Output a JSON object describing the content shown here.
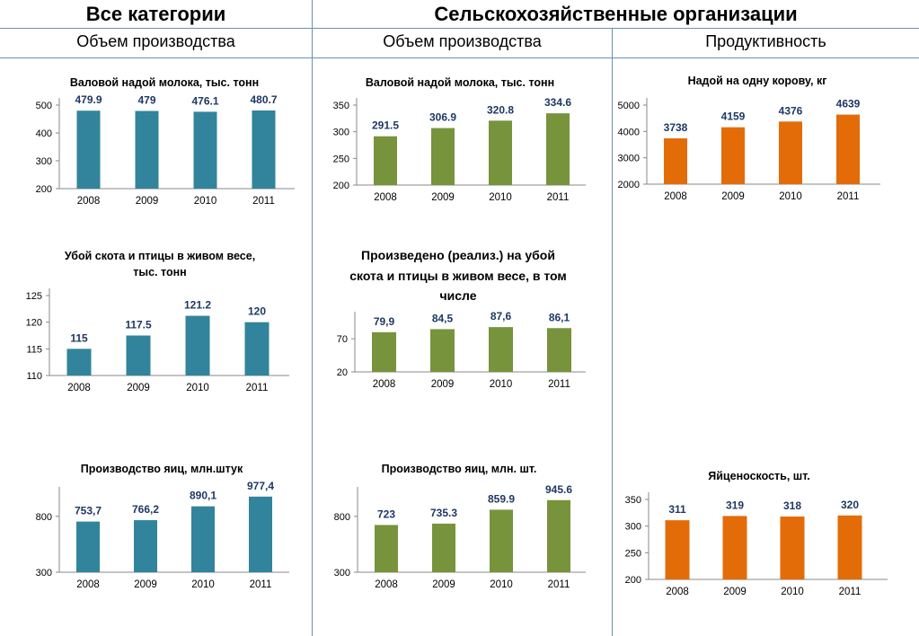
{
  "header": {
    "left_title": "Все категории",
    "right_title": "Сельскохозяйственные организации",
    "col1_subtitle": "Объем производства",
    "col2_subtitle": "Объем производства",
    "col3_subtitle": "Продуктивность"
  },
  "colors": {
    "teal": "#31849b",
    "green": "#77933c",
    "orange": "#e36c09",
    "label": "#1f3864",
    "divider": "#6d8fb0"
  },
  "chart_data": [
    {
      "id": "c1",
      "type": "bar",
      "title": "Валовой надой молока, тыс. тонн",
      "categories": [
        "2008",
        "2009",
        "2010",
        "2011"
      ],
      "values": [
        479.9,
        479,
        476.1,
        480.7
      ],
      "labels": [
        "479.9",
        "479",
        "476.1",
        "480.7"
      ],
      "ylim": [
        200,
        500
      ],
      "yticks": [
        "200",
        "300",
        "400",
        "500"
      ],
      "color": "teal"
    },
    {
      "id": "c2",
      "type": "bar",
      "title": "Валовой надой молока, тыс. тонн",
      "categories": [
        "2008",
        "2009",
        "2010",
        "2011"
      ],
      "values": [
        291.5,
        306.9,
        320.8,
        334.6
      ],
      "labels": [
        "291.5",
        "306.9",
        "320.8",
        "334.6"
      ],
      "ylim": [
        200,
        350
      ],
      "yticks": [
        "200",
        "250",
        "300",
        "350"
      ],
      "color": "green"
    },
    {
      "id": "c3",
      "type": "bar",
      "title": "Надой на одну корову, кг",
      "categories": [
        "2008",
        "2009",
        "2010",
        "2011"
      ],
      "values": [
        3738,
        4159,
        4376,
        4639
      ],
      "labels": [
        "3738",
        "4159",
        "4376",
        "4639"
      ],
      "ylim": [
        2000,
        5000
      ],
      "yticks": [
        "2000",
        "3000",
        "4000",
        "5000"
      ],
      "color": "orange"
    },
    {
      "id": "c4",
      "type": "bar",
      "title": "Убой скота и птицы в живом весе, тыс. тонн",
      "categories": [
        "2008",
        "2009",
        "2010",
        "2011"
      ],
      "values": [
        115,
        117.5,
        121.2,
        120
      ],
      "labels": [
        "115",
        "117.5",
        "121.2",
        "120"
      ],
      "ylim": [
        110,
        125
      ],
      "yticks": [
        "110",
        "115",
        "120",
        "125"
      ],
      "color": "teal"
    },
    {
      "id": "c5",
      "type": "bar",
      "title": "Произведено (реализ.) на убой скота и птицы в живом весе, в том числе",
      "categories": [
        "2008",
        "2009",
        "2010",
        "2011"
      ],
      "values": [
        79.9,
        84.5,
        87.6,
        86.1
      ],
      "labels": [
        "79,9",
        "84,5",
        "87,6",
        "86,1"
      ],
      "ylim": [
        20,
        100
      ],
      "yticks": [
        "20",
        "70"
      ],
      "color": "green"
    },
    {
      "id": "c6",
      "type": "bar",
      "title": "Производство яиц, млн.штук",
      "categories": [
        "2008",
        "2009",
        "2010",
        "2011"
      ],
      "values": [
        753.7,
        766.2,
        890.1,
        977.4
      ],
      "labels": [
        "753,7",
        "766,2",
        "890,1",
        "977,4"
      ],
      "ylim": [
        300,
        1000
      ],
      "yticks": [
        "300",
        "800"
      ],
      "color": "teal"
    },
    {
      "id": "c7",
      "type": "bar",
      "title": "Производство яиц, млн. шт.",
      "categories": [
        "2008",
        "2009",
        "2010",
        "2011"
      ],
      "values": [
        723,
        735.3,
        859.9,
        945.6
      ],
      "labels": [
        "723",
        "735.3",
        "859.9",
        "945.6"
      ],
      "ylim": [
        300,
        1000
      ],
      "yticks": [
        "300",
        "800"
      ],
      "color": "green"
    },
    {
      "id": "c8",
      "type": "bar",
      "title": "Яйценоскость, шт.",
      "categories": [
        "2008",
        "2009",
        "2010",
        "2011"
      ],
      "values": [
        311,
        319,
        318,
        320
      ],
      "labels": [
        "311",
        "319",
        "318",
        "320"
      ],
      "ylim": [
        200,
        350
      ],
      "yticks": [
        "200",
        "250",
        "300",
        "350"
      ],
      "color": "orange"
    }
  ]
}
